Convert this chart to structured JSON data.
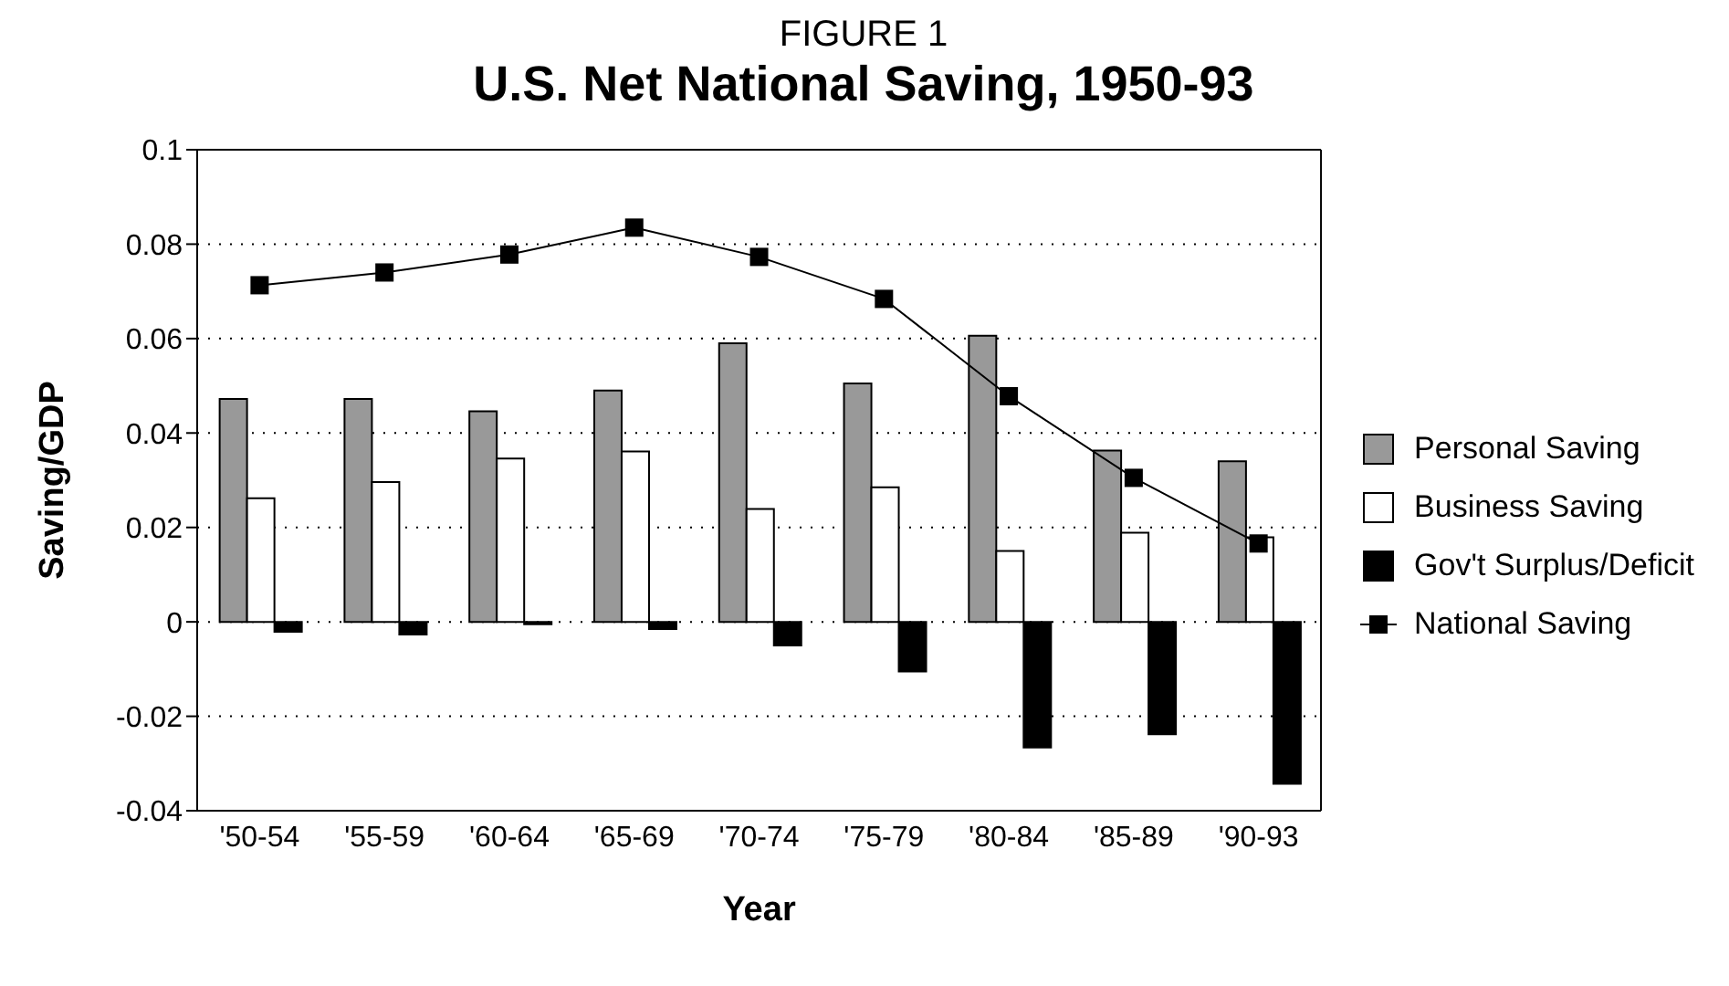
{
  "chart_data": {
    "type": "bar",
    "subtitle": "FIGURE 1",
    "title": "U.S. Net National Saving, 1950-93",
    "xlabel": "Year",
    "ylabel": "Saving/GDP",
    "categories": [
      "'50-54",
      "'55-59",
      "'60-64",
      "'65-69",
      "'70-74",
      "'75-79",
      "'80-84",
      "'85-89",
      "'90-93"
    ],
    "series": [
      {
        "name": "Personal Saving",
        "color": "#999999",
        "values": [
          0.0472,
          0.0472,
          0.0446,
          0.049,
          0.059,
          0.0505,
          0.0606,
          0.0363,
          0.034
        ]
      },
      {
        "name": "Business Saving",
        "color": "#ffffff",
        "values": [
          0.0262,
          0.0296,
          0.0346,
          0.0361,
          0.0239,
          0.0285,
          0.015,
          0.0189,
          0.0179
        ]
      },
      {
        "name": "Gov't Surplus/Deficit",
        "color": "#000000",
        "values": [
          -0.0021,
          -0.0027,
          -0.0005,
          -0.0015,
          -0.005,
          -0.0105,
          -0.0266,
          -0.0238,
          -0.0343
        ]
      },
      {
        "name": "National Saving",
        "type": "line",
        "color": "#000000",
        "marker": "square",
        "values": [
          0.0713,
          0.074,
          0.0778,
          0.0835,
          0.0773,
          0.0684,
          0.0478,
          0.0305,
          0.0166
        ]
      }
    ],
    "ylim": [
      -0.04,
      0.1
    ],
    "yticks": [
      -0.04,
      -0.02,
      0,
      0.02,
      0.04,
      0.06,
      0.08,
      0.1
    ],
    "grid": "y",
    "legend": "right"
  }
}
